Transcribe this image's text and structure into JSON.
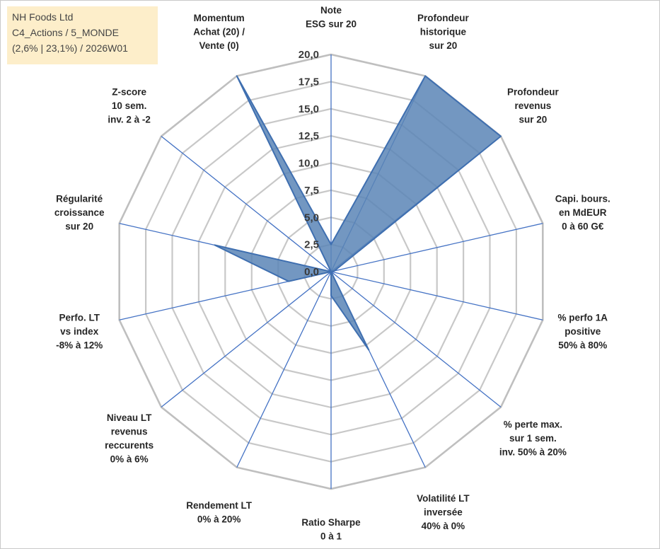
{
  "header": {
    "company": "NH Foods Ltd",
    "category": "C4_Actions / 5_MONDE",
    "details": "(2,6% | 23,1%) / 2026W01"
  },
  "chart_data": {
    "type": "radar",
    "title": "",
    "rmin": 0,
    "rmax": 20,
    "rings": [
      0,
      2.5,
      5,
      7.5,
      10,
      12.5,
      15,
      17.5,
      20
    ],
    "tick_labels": [
      "0,0",
      "2,5",
      "5,0",
      "7,5",
      "10,0",
      "12,5",
      "15,0",
      "17,5",
      "20,0"
    ],
    "grid": true,
    "axes": [
      {
        "lines": [
          "Note",
          "ESG sur 20"
        ],
        "value": 2.5
      },
      {
        "lines": [
          "Profondeur",
          "historique",
          "sur 20"
        ],
        "value": 20
      },
      {
        "lines": [
          "Profondeur",
          "revenus",
          "sur 20"
        ],
        "value": 20
      },
      {
        "lines": [
          "Capi. bours.",
          "en MdEUR",
          "0 à 60 G€"
        ],
        "value": 0.3
      },
      {
        "lines": [
          "% perfo 1A",
          "positive",
          "50% à 80%"
        ],
        "value": 0
      },
      {
        "lines": [
          "% perte max.",
          "sur 1 sem.",
          "inv. 50% à 20%"
        ],
        "value": 0
      },
      {
        "lines": [
          "Volatilité LT",
          "inversée",
          "40% à 0%"
        ],
        "value": 8
      },
      {
        "lines": [
          "Ratio Sharpe",
          "0 à 1"
        ],
        "value": 2.2
      },
      {
        "lines": [
          "Rendement LT",
          "0% à 20%"
        ],
        "value": 0
      },
      {
        "lines": [
          "Niveau LT",
          "revenus",
          "reccurents",
          "0% à 6%"
        ],
        "value": 0
      },
      {
        "lines": [
          "Perfo. LT",
          "vs index",
          "-8% à 12%"
        ],
        "value": 4
      },
      {
        "lines": [
          "Régularité",
          "croissance",
          "sur 20"
        ],
        "value": 11
      },
      {
        "lines": [
          "Z-score",
          "10 sem.",
          "inv. 2 à -2"
        ],
        "value": 0
      },
      {
        "lines": [
          "Momentum",
          "Achat (20) /",
          "Vente (0)"
        ],
        "value": 20
      }
    ],
    "series": [
      {
        "name": "NH Foods Ltd"
      }
    ],
    "colors": {
      "fill": "#5b85b6",
      "stroke": "#3f6fb0",
      "axis": "#4472c4",
      "grid": "#c8c8c8",
      "grid_outer": "#bfbfbf"
    }
  }
}
